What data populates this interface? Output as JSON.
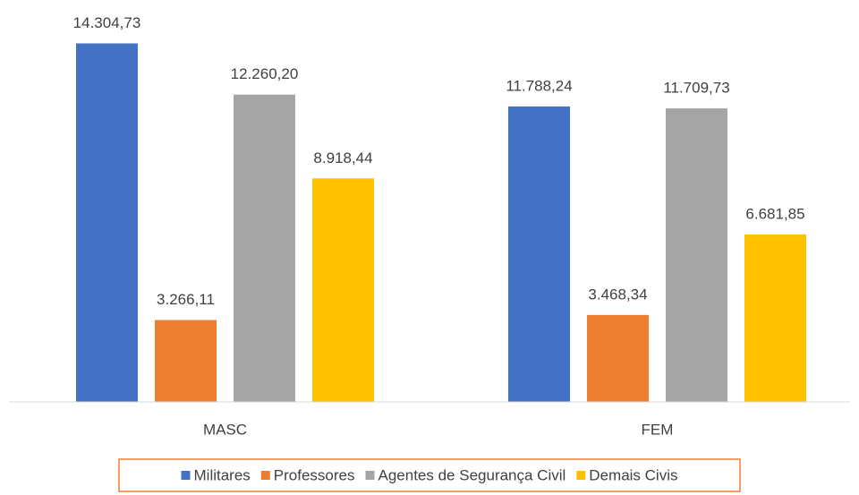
{
  "chart_data": {
    "type": "bar",
    "categories": [
      "MASC",
      "FEM"
    ],
    "series": [
      {
        "name": "Militares",
        "color": "#4472c4",
        "values": [
          14304.73,
          11788.24
        ],
        "value_labels": [
          "14.304,73",
          "11.788,24"
        ]
      },
      {
        "name": "Professores",
        "color": "#ed7d31",
        "values": [
          3266.11,
          3468.34
        ],
        "value_labels": [
          "3.266,11",
          "3.468,34"
        ]
      },
      {
        "name": "Agentes de Segurança Civil",
        "color": "#a5a5a5",
        "values": [
          12260.2,
          11709.73
        ],
        "value_labels": [
          "12.260,20",
          "11.709,73"
        ]
      },
      {
        "name": "Demais Civis",
        "color": "#ffc000",
        "values": [
          8918.44,
          6681.85
        ],
        "value_labels": [
          "8.918,44",
          "6.681,85"
        ]
      }
    ],
    "ylim": [
      0,
      16000
    ],
    "legend": "bottom",
    "legend_border_color": "#ed7d31"
  }
}
